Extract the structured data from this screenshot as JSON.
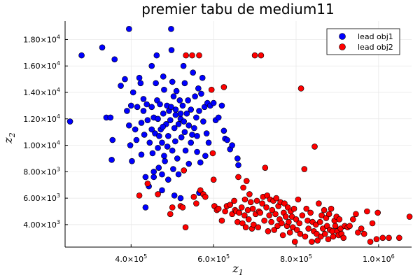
{
  "chart_data": {
    "type": "scatter",
    "title": "premier tabu de medium11",
    "xlabel": "z",
    "xlabel_sub": "1",
    "ylabel": "z",
    "ylabel_sub": "2",
    "xlim": [
      240000,
      1080000
    ],
    "ylim": [
      2300,
      19400
    ],
    "grid": true,
    "legend_position": "top-right",
    "x_ticks": [
      {
        "value": 400000,
        "mantissa": "4.0×10",
        "exp": "5"
      },
      {
        "value": 600000,
        "mantissa": "6.0×10",
        "exp": "5"
      },
      {
        "value": 800000,
        "mantissa": "8.0×10",
        "exp": "5"
      },
      {
        "value": 1000000,
        "mantissa": "1.0×10",
        "exp": "6"
      }
    ],
    "y_ticks": [
      {
        "value": 4000,
        "mantissa": "4.00×10",
        "exp": "3"
      },
      {
        "value": 6000,
        "mantissa": "6.00×10",
        "exp": "3"
      },
      {
        "value": 8000,
        "mantissa": "8.00×10",
        "exp": "3"
      },
      {
        "value": 10000,
        "mantissa": "1.00×10",
        "exp": "4"
      },
      {
        "value": 12000,
        "mantissa": "1.20×10",
        "exp": "4"
      },
      {
        "value": 14000,
        "mantissa": "1.40×10",
        "exp": "4"
      },
      {
        "value": 16000,
        "mantissa": "1.60×10",
        "exp": "4"
      },
      {
        "value": 18000,
        "mantissa": "1.80×10",
        "exp": "4"
      }
    ],
    "series": [
      {
        "name": "lead obj1",
        "color": "#0000ff",
        "points": [
          [
            252000,
            11800
          ],
          [
            280000,
            16800
          ],
          [
            330000,
            17400
          ],
          [
            340000,
            12100
          ],
          [
            350000,
            12100
          ],
          [
            355000,
            10400
          ],
          [
            353000,
            8900
          ],
          [
            360000,
            16500
          ],
          [
            375000,
            14500
          ],
          [
            385000,
            15000
          ],
          [
            395000,
            18800
          ],
          [
            390000,
            12600
          ],
          [
            395000,
            11500
          ],
          [
            398000,
            10000
          ],
          [
            400000,
            13000
          ],
          [
            402000,
            8800
          ],
          [
            405000,
            14000
          ],
          [
            410000,
            11200
          ],
          [
            413000,
            10400
          ],
          [
            415000,
            12900
          ],
          [
            420000,
            15100
          ],
          [
            423000,
            14700
          ],
          [
            425000,
            11700
          ],
          [
            425000,
            9300
          ],
          [
            430000,
            13500
          ],
          [
            430000,
            12600
          ],
          [
            432000,
            10800
          ],
          [
            435000,
            7600
          ],
          [
            438000,
            13100
          ],
          [
            440000,
            11900
          ],
          [
            445000,
            10200
          ],
          [
            450000,
            16000
          ],
          [
            450000,
            12900
          ],
          [
            452000,
            9400
          ],
          [
            455000,
            12100
          ],
          [
            455000,
            7600
          ],
          [
            458000,
            10900
          ],
          [
            460000,
            14700
          ],
          [
            462000,
            16800
          ],
          [
            463000,
            13400
          ],
          [
            465000,
            12000
          ],
          [
            465000,
            9800
          ],
          [
            467000,
            8300
          ],
          [
            470000,
            13100
          ],
          [
            472000,
            11200
          ],
          [
            475000,
            10200
          ],
          [
            475000,
            7800
          ],
          [
            478000,
            15200
          ],
          [
            478000,
            12400
          ],
          [
            480000,
            14200
          ],
          [
            480000,
            9200
          ],
          [
            482000,
            8800
          ],
          [
            485000,
            11600
          ],
          [
            487000,
            13000
          ],
          [
            490000,
            10700
          ],
          [
            490000,
            7400
          ],
          [
            492000,
            12600
          ],
          [
            495000,
            11900
          ],
          [
            497000,
            18800
          ],
          [
            498000,
            17200
          ],
          [
            500000,
            14800
          ],
          [
            500000,
            9600
          ],
          [
            502000,
            8200
          ],
          [
            503000,
            13700
          ],
          [
            505000,
            11300
          ],
          [
            507000,
            10300
          ],
          [
            508000,
            12700
          ],
          [
            510000,
            14100
          ],
          [
            512000,
            9000
          ],
          [
            515000,
            11600
          ],
          [
            515000,
            7800
          ],
          [
            518000,
            13400
          ],
          [
            520000,
            12000
          ],
          [
            522000,
            10600
          ],
          [
            525000,
            13000
          ],
          [
            527000,
            16000
          ],
          [
            530000,
            14700
          ],
          [
            530000,
            11000
          ],
          [
            532000,
            9600
          ],
          [
            535000,
            12400
          ],
          [
            538000,
            13400
          ],
          [
            540000,
            8600
          ],
          [
            545000,
            12700
          ],
          [
            548000,
            10800
          ],
          [
            550000,
            15500
          ],
          [
            553000,
            11300
          ],
          [
            555000,
            13700
          ],
          [
            558000,
            12100
          ],
          [
            560000,
            9500
          ],
          [
            563000,
            14300
          ],
          [
            565000,
            12600
          ],
          [
            568000,
            8700
          ],
          [
            570000,
            13900
          ],
          [
            573000,
            15100
          ],
          [
            575000,
            11800
          ],
          [
            578000,
            12900
          ],
          [
            580000,
            9200
          ],
          [
            585000,
            13200
          ],
          [
            588000,
            10200
          ],
          [
            592000,
            13000
          ],
          [
            450000,
            11200
          ],
          [
            468000,
            10700
          ],
          [
            488000,
            9900
          ],
          [
            508000,
            12300
          ],
          [
            528000,
            11800
          ],
          [
            497000,
            12900
          ],
          [
            477000,
            11400
          ],
          [
            520000,
            6000
          ],
          [
            435000,
            5300
          ],
          [
            455000,
            8000
          ],
          [
            505000,
            6200
          ],
          [
            540000,
            11500
          ],
          [
            545000,
            10200
          ],
          [
            560000,
            10700
          ],
          [
            583000,
            10900
          ],
          [
            600000,
            13200
          ],
          [
            605000,
            11900
          ],
          [
            612000,
            12100
          ],
          [
            620000,
            13000
          ],
          [
            625000,
            11100
          ],
          [
            628000,
            10500
          ],
          [
            633000,
            10400
          ],
          [
            640000,
            9700
          ],
          [
            645000,
            10000
          ],
          [
            660000,
            8500
          ],
          [
            658000,
            9000
          ],
          [
            443000,
            6900
          ],
          [
            475000,
            6600
          ],
          [
            565000,
            6400
          ],
          [
            520000,
            12400
          ]
        ]
      },
      {
        "name": "lead obj2",
        "color": "#ff0000",
        "points": [
          [
            420000,
            6200
          ],
          [
            440000,
            7100
          ],
          [
            465000,
            6300
          ],
          [
            495000,
            4800
          ],
          [
            500000,
            5300
          ],
          [
            520000,
            5400
          ],
          [
            525000,
            5300
          ],
          [
            528000,
            8100
          ],
          [
            532000,
            3800
          ],
          [
            533000,
            16800
          ],
          [
            548000,
            16800
          ],
          [
            552000,
            6100
          ],
          [
            558000,
            5600
          ],
          [
            565000,
            16800
          ],
          [
            568000,
            6600
          ],
          [
            575000,
            6300
          ],
          [
            580000,
            6100
          ],
          [
            595000,
            14200
          ],
          [
            598000,
            9400
          ],
          [
            600000,
            7400
          ],
          [
            602000,
            5400
          ],
          [
            608000,
            5100
          ],
          [
            612000,
            5200
          ],
          [
            620000,
            4300
          ],
          [
            625000,
            14400
          ],
          [
            628000,
            5000
          ],
          [
            632000,
            5400
          ],
          [
            640000,
            5500
          ],
          [
            645000,
            4800
          ],
          [
            650000,
            5800
          ],
          [
            652000,
            5100
          ],
          [
            655000,
            5000
          ],
          [
            658000,
            4200
          ],
          [
            660000,
            7600
          ],
          [
            662000,
            4900
          ],
          [
            668000,
            5300
          ],
          [
            670000,
            4100
          ],
          [
            672000,
            6800
          ],
          [
            675000,
            4700
          ],
          [
            676000,
            5900
          ],
          [
            678000,
            3800
          ],
          [
            680000,
            7300
          ],
          [
            683000,
            5100
          ],
          [
            685000,
            4400
          ],
          [
            687000,
            6300
          ],
          [
            690000,
            5700
          ],
          [
            693000,
            3700
          ],
          [
            695000,
            5200
          ],
          [
            697000,
            4000
          ],
          [
            700000,
            16800
          ],
          [
            702000,
            4800
          ],
          [
            705000,
            5800
          ],
          [
            708000,
            3800
          ],
          [
            710000,
            5000
          ],
          [
            713000,
            4900
          ],
          [
            715000,
            16800
          ],
          [
            718000,
            5600
          ],
          [
            720000,
            6100
          ],
          [
            723000,
            4300
          ],
          [
            725000,
            8300
          ],
          [
            728000,
            5300
          ],
          [
            730000,
            6200
          ],
          [
            732000,
            3500
          ],
          [
            735000,
            4700
          ],
          [
            737000,
            5900
          ],
          [
            740000,
            4200
          ],
          [
            742000,
            5100
          ],
          [
            745000,
            5800
          ],
          [
            747000,
            3600
          ],
          [
            750000,
            4800
          ],
          [
            752000,
            6000
          ],
          [
            755000,
            3900
          ],
          [
            757000,
            5400
          ],
          [
            760000,
            4400
          ],
          [
            762000,
            5700
          ],
          [
            765000,
            4100
          ],
          [
            768000,
            3200
          ],
          [
            770000,
            4900
          ],
          [
            772000,
            5600
          ],
          [
            775000,
            4600
          ],
          [
            778000,
            3900
          ],
          [
            780000,
            5300
          ],
          [
            782000,
            4200
          ],
          [
            785000,
            3400
          ],
          [
            787000,
            5000
          ],
          [
            790000,
            4600
          ],
          [
            792000,
            3800
          ],
          [
            795000,
            5200
          ],
          [
            797000,
            2700
          ],
          [
            800000,
            4400
          ],
          [
            802000,
            3600
          ],
          [
            805000,
            5900
          ],
          [
            808000,
            4100
          ],
          [
            810000,
            3300
          ],
          [
            812000,
            14300
          ],
          [
            815000,
            4700
          ],
          [
            820000,
            8200
          ],
          [
            822000,
            3100
          ],
          [
            825000,
            5200
          ],
          [
            828000,
            4300
          ],
          [
            830000,
            3700
          ],
          [
            835000,
            4900
          ],
          [
            838000,
            2700
          ],
          [
            840000,
            4200
          ],
          [
            843000,
            3500
          ],
          [
            845000,
            9900
          ],
          [
            848000,
            4000
          ],
          [
            850000,
            3300
          ],
          [
            852000,
            2800
          ],
          [
            855000,
            5600
          ],
          [
            858000,
            4200
          ],
          [
            860000,
            3100
          ],
          [
            862000,
            4700
          ],
          [
            865000,
            3700
          ],
          [
            868000,
            5100
          ],
          [
            870000,
            3300
          ],
          [
            873000,
            4500
          ],
          [
            875000,
            3900
          ],
          [
            878000,
            2900
          ],
          [
            880000,
            4800
          ],
          [
            882000,
            3600
          ],
          [
            885000,
            5200
          ],
          [
            888000,
            3500
          ],
          [
            890000,
            3100
          ],
          [
            893000,
            4300
          ],
          [
            895000,
            3900
          ],
          [
            898000,
            4600
          ],
          [
            900000,
            3500
          ],
          [
            903000,
            3200
          ],
          [
            905000,
            4400
          ],
          [
            908000,
            3700
          ],
          [
            910000,
            3300
          ],
          [
            915000,
            3000
          ],
          [
            918000,
            3900
          ],
          [
            925000,
            3800
          ],
          [
            930000,
            3900
          ],
          [
            938000,
            4400
          ],
          [
            945000,
            4800
          ],
          [
            950000,
            3400
          ],
          [
            958000,
            3700
          ],
          [
            965000,
            3300
          ],
          [
            972000,
            5000
          ],
          [
            980000,
            2700
          ],
          [
            985000,
            4100
          ],
          [
            995000,
            2900
          ],
          [
            998000,
            4900
          ],
          [
            1010000,
            3000
          ],
          [
            1025000,
            3000
          ],
          [
            1050000,
            3000
          ],
          [
            1075000,
            4600
          ]
        ]
      }
    ]
  }
}
